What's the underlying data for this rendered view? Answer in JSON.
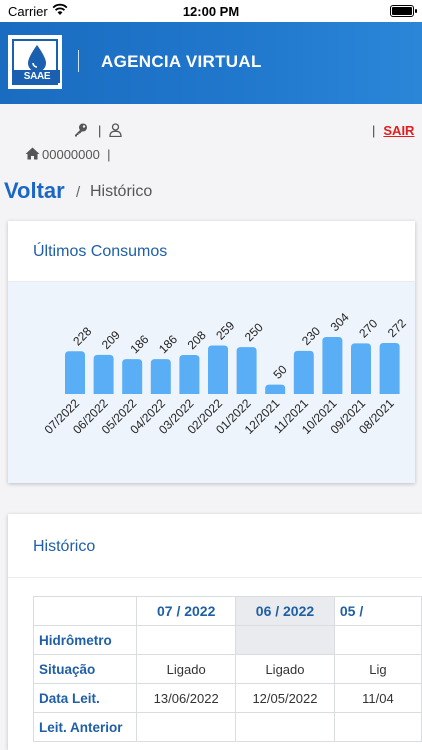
{
  "status_bar": {
    "carrier": "Carrier",
    "time": "12:00 PM"
  },
  "header": {
    "logo_text": "SAAE",
    "title": "AGENCIA VIRTUAL"
  },
  "user_bar": {
    "pipe": "|",
    "home_code": "00000000",
    "logout_label": "SAIR"
  },
  "breadcrumb": {
    "back": "Voltar",
    "separator": "/",
    "current": "Histórico"
  },
  "consumption_card": {
    "title": "Últimos Consumos"
  },
  "chart_data": {
    "type": "bar",
    "categories": [
      "07/2022",
      "06/2022",
      "05/2022",
      "04/2022",
      "03/2022",
      "02/2022",
      "01/2022",
      "12/2021",
      "11/2021",
      "10/2021",
      "09/2021",
      "08/2021"
    ],
    "values": [
      228,
      209,
      186,
      186,
      208,
      259,
      250,
      50,
      230,
      304,
      270,
      272
    ],
    "ylim": [
      0,
      304
    ],
    "bar_color": "#5aaef5",
    "grid": false,
    "data_labels": true
  },
  "history_card": {
    "title": "Histórico",
    "columns": [
      "07 / 2022",
      "06 / 2022",
      "05 /"
    ],
    "rows": [
      {
        "label": "Hidrômetro",
        "values": [
          "",
          "",
          ""
        ]
      },
      {
        "label": "Situação",
        "values": [
          "Ligado",
          "Ligado",
          "Lig"
        ]
      },
      {
        "label": "Data Leit.",
        "values": [
          "13/06/2022",
          "12/05/2022",
          "11/04"
        ]
      },
      {
        "label": "Leit. Anterior",
        "values": [
          "",
          "",
          ""
        ]
      }
    ]
  },
  "colors": {
    "header": "#1c73c7",
    "accent": "#1f5fa6",
    "logout": "#e11d1d"
  }
}
